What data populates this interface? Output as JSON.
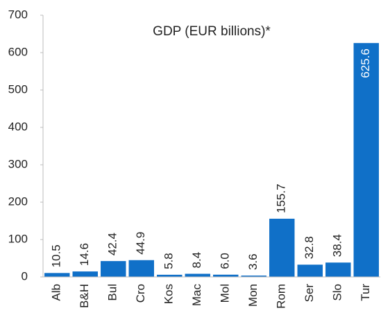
{
  "chart_data": {
    "type": "bar",
    "title": "GDP (EUR billions)*",
    "categories": [
      "Alb",
      "B&H",
      "Bul",
      "Cro",
      "Kos",
      "Mac",
      "Mol",
      "Mon",
      "Rom",
      "Ser",
      "Slo",
      "Tur"
    ],
    "values": [
      10.5,
      14.6,
      42.4,
      44.9,
      5.8,
      8.4,
      6.0,
      3.6,
      155.7,
      32.8,
      38.4,
      625.6
    ],
    "value_labels": [
      "10.5",
      "14.6",
      "42.4",
      "44.9",
      "5.8",
      "8.4",
      "6.0",
      "3.6",
      "155.7",
      "32.8",
      "38.4",
      "625.6"
    ],
    "color": "#1070c8",
    "ylim": [
      0,
      700
    ],
    "yticks": [
      0,
      100,
      200,
      300,
      400,
      500,
      600,
      700
    ],
    "grid": false
  }
}
